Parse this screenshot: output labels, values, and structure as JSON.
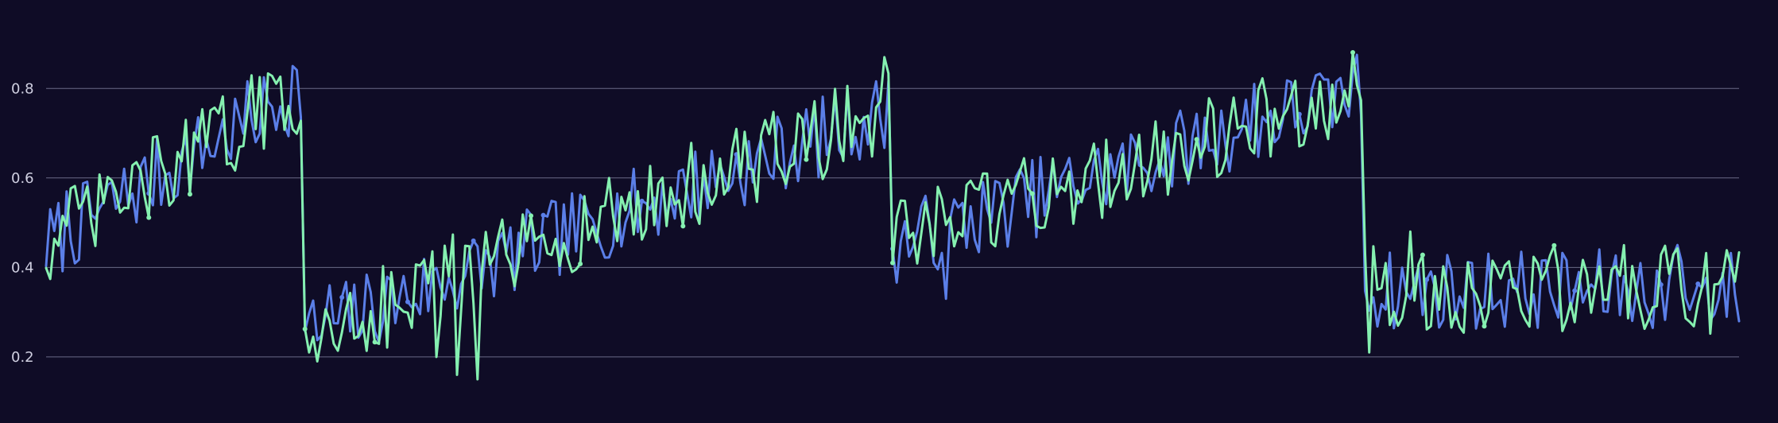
{
  "chart_data": {
    "type": "line",
    "ylim": [
      0.07,
      0.98
    ],
    "xlim": [
      0,
      412
    ],
    "y_ticks": [
      0.2,
      0.4,
      0.6,
      0.8
    ],
    "y_tick_labels": [
      "0.2",
      "0.4",
      "0.6",
      "0.8"
    ],
    "grid": "horizontal",
    "legend": "none",
    "colors": {
      "background": "#0f0c26",
      "grid": "#6a6a86",
      "tick_text": "#cfcfe0"
    },
    "series": [
      {
        "color": "#5b7fe8",
        "segments": [
          {
            "start": 0,
            "end": 62,
            "a": 0.45,
            "b": 0.8
          },
          {
            "start": 63,
            "end": 205,
            "a": 0.25,
            "b": 0.75
          },
          {
            "start": 206,
            "end": 320,
            "a": 0.45,
            "b": 0.8
          },
          {
            "start": 321,
            "end": 412,
            "a": 0.35,
            "b": 0.35
          }
        ],
        "noise": 0.045,
        "markers": [
          25,
          72,
          88,
          104,
          121,
          145,
          168,
          206,
          251,
          305,
          336,
          372,
          393,
          402
        ],
        "spikes": [
          [
            5,
            0.57
          ],
          [
            60,
            0.85
          ],
          [
            69,
            0.36
          ],
          [
            172,
            0.59
          ],
          [
            219,
            0.33
          ],
          [
            294,
            0.81
          ],
          [
            312,
            0.82
          ],
          [
            378,
            0.44
          ],
          [
            397,
            0.45
          ]
        ]
      },
      {
        "color": "#85f0b0",
        "segments": [
          {
            "start": 0,
            "end": 62,
            "a": 0.45,
            "b": 0.8
          },
          {
            "start": 63,
            "end": 205,
            "a": 0.25,
            "b": 0.75
          },
          {
            "start": 206,
            "end": 320,
            "a": 0.45,
            "b": 0.8
          },
          {
            "start": 321,
            "end": 412,
            "a": 0.35,
            "b": 0.35
          }
        ],
        "noise": 0.05,
        "markers": [
          25,
          35,
          63,
          80,
          118,
          130,
          155,
          185,
          206,
          240,
          280,
          318,
          335,
          350,
          367
        ],
        "spikes": [
          [
            64,
            0.21
          ],
          [
            66,
            0.19
          ],
          [
            95,
            0.2
          ],
          [
            100,
            0.16
          ],
          [
            105,
            0.15
          ],
          [
            119,
            0.46
          ],
          [
            204,
            0.87
          ],
          [
            228,
            0.61
          ],
          [
            322,
            0.21
          ],
          [
            332,
            0.48
          ]
        ]
      }
    ]
  }
}
